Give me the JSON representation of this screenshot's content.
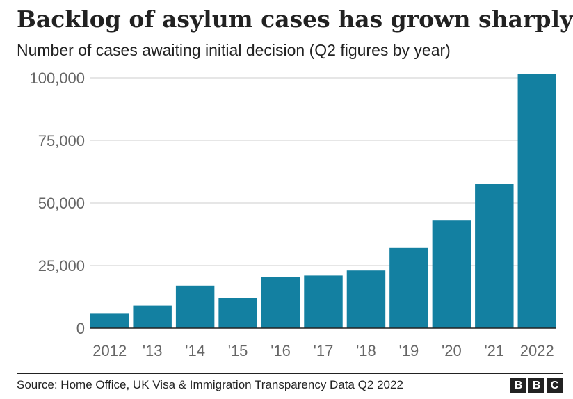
{
  "header": {
    "title": "Backlog of asylum cases has grown sharply",
    "subtitle": "Number of cases awaiting initial decision (Q2 figures by year)"
  },
  "chart_data": {
    "type": "bar",
    "title": "Backlog of asylum cases has grown sharply",
    "subtitle": "Number of cases awaiting initial decision (Q2 figures by year)",
    "xlabel": "",
    "ylabel": "",
    "categories": [
      "2012",
      "'13",
      "'14",
      "'15",
      "'16",
      "'17",
      "'18",
      "'19",
      "'20",
      "'21",
      "2022"
    ],
    "values": [
      6000,
      9000,
      17000,
      12000,
      20500,
      21000,
      23000,
      32000,
      43000,
      57500,
      101500
    ],
    "ylim": [
      0,
      100000
    ],
    "yticks": [
      0,
      25000,
      50000,
      75000,
      100000
    ],
    "ytick_labels": [
      "0",
      "25,000",
      "50,000",
      "75,000",
      "100,000"
    ],
    "grid": true,
    "legend": "none",
    "colors": {
      "bar": "#1380a1",
      "grid": "#cccccc",
      "axis": "#222222",
      "tick_text": "#666666"
    }
  },
  "footer": {
    "source": "Source: Home Office, UK Visa & Immigration Transparency Data Q2 2022",
    "logo_letters": [
      "B",
      "B",
      "C"
    ]
  }
}
